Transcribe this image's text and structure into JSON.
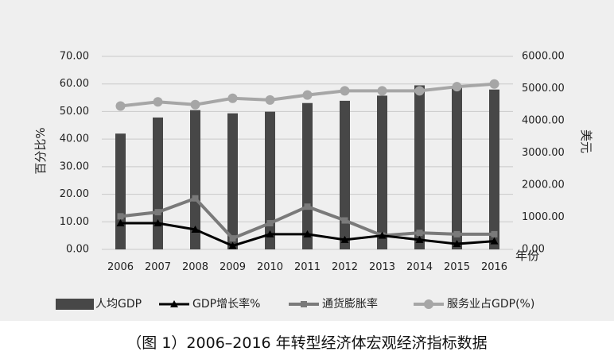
{
  "caption": "（图 1）2006–2016 年转型经济体宏观经济指标数据",
  "chart_data": {
    "type": "bar",
    "title": "",
    "categories": [
      "2006",
      "2007",
      "2008",
      "2009",
      "2010",
      "2011",
      "2012",
      "2013",
      "2014",
      "2015",
      "2016"
    ],
    "xlabel": "年份",
    "ylabel": "百分比%",
    "ylabel_right": "美元",
    "ylim": [
      0,
      70
    ],
    "ylim_right": [
      0,
      6000
    ],
    "yticks": [
      "0.00",
      "10.00",
      "20.00",
      "30.00",
      "40.00",
      "50.00",
      "60.00",
      "70.00"
    ],
    "yticks_right": [
      "0.00",
      "1000.00",
      "2000.00",
      "3000.00",
      "4000.00",
      "5000.00",
      "6000.00"
    ],
    "grid": true,
    "legend_position": "bottom",
    "series": [
      {
        "name": "人均GDP",
        "type": "bar",
        "axis": "right",
        "color": "#474747",
        "values": [
          3600,
          4100,
          4330,
          4230,
          4280,
          4550,
          4620,
          4780,
          5100,
          5080,
          4970
        ]
      },
      {
        "name": "GDP增长率%",
        "type": "line",
        "axis": "left",
        "color": "#000000",
        "marker": "triangle",
        "values": [
          9.5,
          9.5,
          7.2,
          1.3,
          5.5,
          5.5,
          3.5,
          5.0,
          3.5,
          2.0,
          3.0
        ]
      },
      {
        "name": "通货膨胀率",
        "type": "line",
        "axis": "left",
        "color": "#7a7a7a",
        "marker": "square",
        "values": [
          12.0,
          13.5,
          18.5,
          4.0,
          9.5,
          15.5,
          10.5,
          5.0,
          6.0,
          5.5,
          5.5
        ]
      },
      {
        "name": "服务业占GDP(%)",
        "type": "line",
        "axis": "left",
        "color": "#a6a6a6",
        "marker": "circle",
        "values": [
          52.0,
          53.5,
          52.5,
          54.8,
          54.2,
          56.0,
          57.5,
          57.5,
          57.5,
          59.0,
          60.0
        ]
      }
    ]
  }
}
